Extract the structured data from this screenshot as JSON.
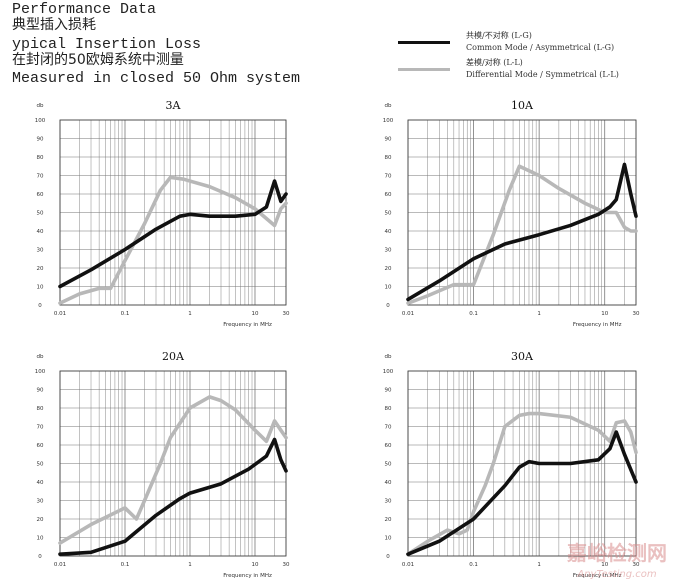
{
  "header": {
    "lines": [
      "Performance Data",
      "典型插入损耗",
      "ypical Insertion Loss",
      "在封闭的50欧姆系统中测量",
      "Measured in closed 50 Ohm system"
    ]
  },
  "legend": [
    {
      "label_cn": "共模/不对称 (L-G)",
      "label_en": "Common Mode / Asymmetrical (L-G)",
      "color": "#111111"
    },
    {
      "label_cn": "差模/对称 (L-L)",
      "label_en": "Differential Mode / Symmetrical (L-L)",
      "color": "#b8b8b8"
    }
  ],
  "colors": {
    "common": "#111111",
    "differential": "#b8b8b8",
    "grid": "#777777",
    "text": "#333333"
  },
  "watermark": {
    "cn": "嘉峪检测网",
    "en": "AnyTesting.com"
  },
  "chart_data": [
    {
      "type": "line",
      "title": "3A",
      "ylabel": "db",
      "xlabel": "Frequency in MHz",
      "xscale": "log",
      "xlim": [
        0.01,
        30
      ],
      "ylim": [
        0,
        100
      ],
      "xticks": [
        0.01,
        0.1,
        1,
        10,
        30
      ],
      "xticklabels": [
        "0.01",
        "0.1",
        "1",
        "10",
        "30"
      ],
      "yticks": [
        0,
        10,
        20,
        30,
        40,
        50,
        60,
        70,
        80,
        90,
        100
      ],
      "yticklabels": [
        "0",
        "10",
        "20",
        "30",
        "40",
        "50",
        "60",
        "70",
        "80",
        "90",
        "100"
      ],
      "grid": true,
      "series": [
        {
          "name": "Common Mode / Asymmetrical (L-G)",
          "color": "#111111",
          "x": [
            0.01,
            0.03,
            0.1,
            0.3,
            0.7,
            1,
            2,
            5,
            10,
            15,
            20,
            25,
            30
          ],
          "y": [
            10,
            19,
            30,
            41,
            48,
            49,
            48,
            48,
            49,
            53,
            67,
            56,
            60
          ]
        },
        {
          "name": "Differential Mode / Symmetrical (L-L)",
          "color": "#b8b8b8",
          "x": [
            0.01,
            0.02,
            0.04,
            0.06,
            0.1,
            0.2,
            0.35,
            0.5,
            0.8,
            1,
            2,
            5,
            10,
            20,
            25,
            30
          ],
          "y": [
            1,
            6,
            9,
            9,
            24,
            44,
            62,
            69,
            68,
            67,
            64,
            58,
            52,
            43,
            52,
            55
          ]
        }
      ]
    },
    {
      "type": "line",
      "title": "10A",
      "ylabel": "db",
      "xlabel": "Frequency in MHz",
      "xscale": "log",
      "xlim": [
        0.01,
        30
      ],
      "ylim": [
        0,
        100
      ],
      "xticks": [
        0.01,
        0.1,
        1,
        10,
        30
      ],
      "xticklabels": [
        "0.01",
        "0.1",
        "1",
        "10",
        "30"
      ],
      "yticks": [
        0,
        10,
        20,
        30,
        40,
        50,
        60,
        70,
        80,
        90,
        100
      ],
      "yticklabels": [
        "0",
        "10",
        "20",
        "30",
        "40",
        "50",
        "60",
        "70",
        "80",
        "90",
        "100"
      ],
      "grid": true,
      "series": [
        {
          "name": "Common Mode / Asymmetrical (L-G)",
          "color": "#111111",
          "x": [
            0.01,
            0.03,
            0.1,
            0.3,
            1,
            3,
            8,
            12,
            15,
            20,
            25,
            30
          ],
          "y": [
            3,
            13,
            25,
            33,
            38,
            43,
            49,
            53,
            57,
            76,
            60,
            48
          ]
        },
        {
          "name": "Differential Mode / Symmetrical (L-L)",
          "color": "#b8b8b8",
          "x": [
            0.01,
            0.02,
            0.05,
            0.07,
            0.1,
            0.2,
            0.35,
            0.5,
            1,
            2,
            5,
            10,
            15,
            20,
            25,
            30
          ],
          "y": [
            1,
            5,
            11,
            11,
            11,
            38,
            62,
            75,
            70,
            63,
            55,
            50,
            50,
            42,
            40,
            40
          ]
        }
      ]
    },
    {
      "type": "line",
      "title": "20A",
      "ylabel": "db",
      "xlabel": "Frequency in MHz",
      "xscale": "log",
      "xlim": [
        0.01,
        30
      ],
      "ylim": [
        0,
        100
      ],
      "xticks": [
        0.01,
        0.1,
        1,
        10,
        30
      ],
      "xticklabels": [
        "0.01",
        "0.1",
        "1",
        "10",
        "30"
      ],
      "yticks": [
        0,
        10,
        20,
        30,
        40,
        50,
        60,
        70,
        80,
        90,
        100
      ],
      "yticklabels": [
        "0",
        "10",
        "20",
        "30",
        "40",
        "50",
        "60",
        "70",
        "80",
        "90",
        "100"
      ],
      "grid": true,
      "series": [
        {
          "name": "Common Mode / Asymmetrical (L-G)",
          "color": "#111111",
          "x": [
            0.01,
            0.03,
            0.1,
            0.3,
            0.7,
            1,
            3,
            8,
            15,
            20,
            25,
            30
          ],
          "y": [
            1,
            2,
            8,
            22,
            31,
            34,
            39,
            47,
            54,
            63,
            52,
            46
          ]
        },
        {
          "name": "Differential Mode / Symmetrical (L-L)",
          "color": "#b8b8b8",
          "x": [
            0.01,
            0.03,
            0.1,
            0.15,
            0.2,
            0.35,
            0.5,
            1,
            2,
            3,
            5,
            10,
            15,
            20,
            25,
            30
          ],
          "y": [
            7,
            17,
            26,
            20,
            30,
            50,
            64,
            80,
            86,
            84,
            79,
            68,
            62,
            73,
            68,
            64
          ]
        }
      ]
    },
    {
      "type": "line",
      "title": "30A",
      "ylabel": "db",
      "xlabel": "Frequency in MHz",
      "xscale": "log",
      "xlim": [
        0.01,
        30
      ],
      "ylim": [
        0,
        100
      ],
      "xticks": [
        0.01,
        0.1,
        1,
        10,
        30
      ],
      "xticklabels": [
        "0.01",
        "0.1",
        "1",
        "10",
        "30"
      ],
      "yticks": [
        0,
        10,
        20,
        30,
        40,
        50,
        60,
        70,
        80,
        90,
        100
      ],
      "yticklabels": [
        "0",
        "10",
        "20",
        "30",
        "40",
        "50",
        "60",
        "70",
        "80",
        "90",
        "100"
      ],
      "grid": true,
      "series": [
        {
          "name": "Common Mode / Asymmetrical (L-G)",
          "color": "#111111",
          "x": [
            0.01,
            0.03,
            0.1,
            0.3,
            0.5,
            0.7,
            1,
            3,
            8,
            12,
            15,
            20,
            30
          ],
          "y": [
            1,
            8,
            20,
            38,
            48,
            51,
            50,
            50,
            52,
            58,
            67,
            55,
            40
          ]
        },
        {
          "name": "Differential Mode / Symmetrical (L-L)",
          "color": "#b8b8b8",
          "x": [
            0.01,
            0.02,
            0.04,
            0.06,
            0.08,
            0.1,
            0.15,
            0.2,
            0.3,
            0.5,
            0.7,
            1,
            3,
            8,
            12,
            15,
            20,
            25,
            30
          ],
          "y": [
            1,
            8,
            14,
            12,
            14,
            24,
            38,
            50,
            70,
            76,
            77,
            77,
            75,
            68,
            62,
            72,
            73,
            67,
            56
          ]
        }
      ]
    }
  ]
}
